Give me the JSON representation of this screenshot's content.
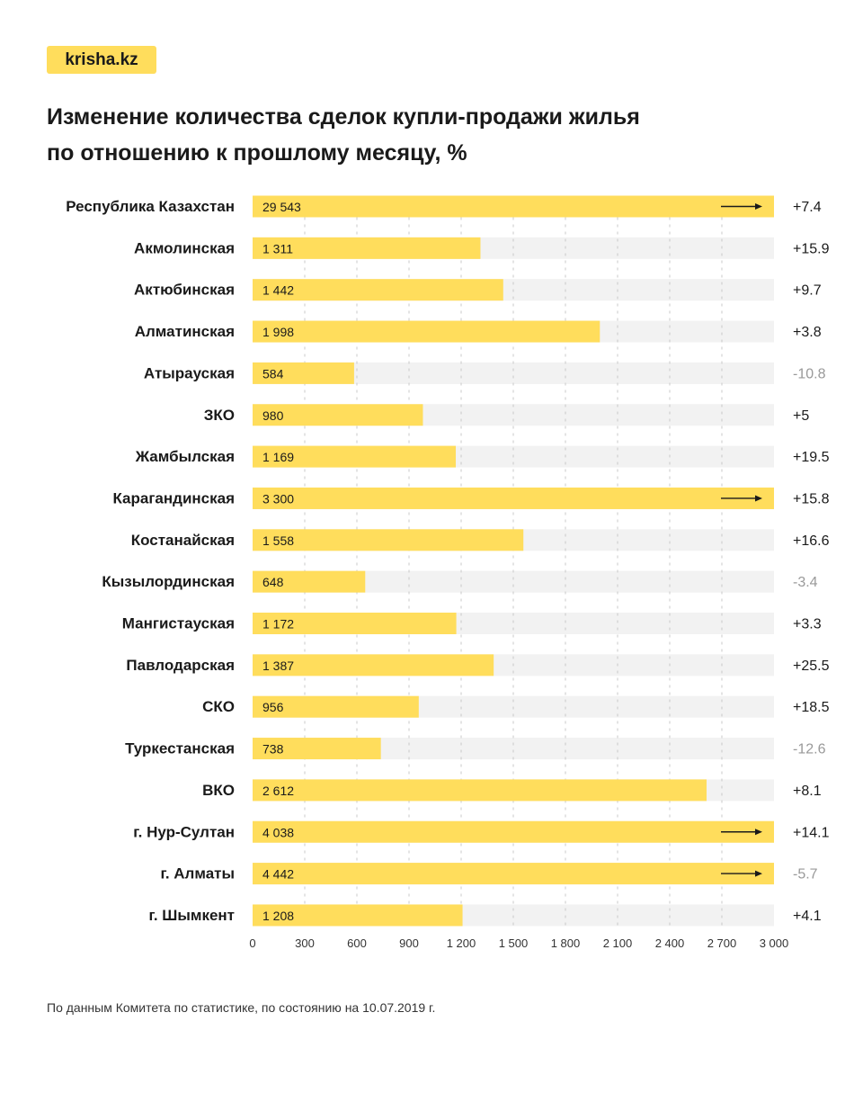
{
  "logo": {
    "text": "krisha.kz"
  },
  "footnote": "По данным Комитета по статистике, по состоянию на 10.07.2019 г.",
  "chart_data": {
    "type": "bar",
    "orientation": "horizontal",
    "title_lines": [
      "Изменение количества сделок купли-продажи жилья",
      "по отношению к прошлому месяцу, %"
    ],
    "xlim": [
      0,
      3000
    ],
    "x_ticks": [
      0,
      300,
      600,
      900,
      1200,
      1500,
      1800,
      2100,
      2400,
      2700,
      3000
    ],
    "x_tick_labels": [
      "0",
      "300",
      "600",
      "900",
      "1 200",
      "1 500",
      "1 800",
      "2 100",
      "2 400",
      "2 700",
      "3 000"
    ],
    "grid": "vertical-dashed",
    "categories": [
      "Республика Казахстан",
      "Акмолинская",
      "Актюбинская",
      "Алматинская",
      "Атырауская",
      "ЗКО",
      "Жамбылская",
      "Карагандинская",
      "Костанайская",
      "Кызылординская",
      "Мангистауская",
      "Павлодарская",
      "СКО",
      "Туркестанская",
      "ВКО",
      "г. Нур-Султан",
      "г. Алматы",
      "г. Шымкент"
    ],
    "values": [
      29543,
      1311,
      1442,
      1998,
      584,
      980,
      1169,
      3300,
      1558,
      648,
      1172,
      1387,
      956,
      738,
      2612,
      4038,
      4442,
      1208
    ],
    "value_labels": [
      "29 543",
      "1 311",
      "1 442",
      "1 998",
      "584",
      "980",
      "1 169",
      "3 300",
      "1 558",
      "648",
      "1 172",
      "1 387",
      "956",
      "738",
      "2 612",
      "4 038",
      "4 442",
      "1 208"
    ],
    "overflow_arrow": [
      true,
      false,
      false,
      false,
      false,
      false,
      false,
      true,
      false,
      false,
      false,
      false,
      false,
      false,
      false,
      true,
      true,
      false
    ],
    "change_labels": [
      "+7.4",
      "+15.9",
      "+9.7",
      "+3.8",
      "-10.8",
      "+5",
      "+19.5",
      "+15.8",
      "+16.6",
      "-3.4",
      "+3.3",
      "+25.5",
      "+18.5",
      "-12.6",
      "+8.1",
      "+14.1",
      "-5.7",
      "+4.1"
    ],
    "change_values": [
      7.4,
      15.9,
      9.7,
      3.8,
      -10.8,
      5,
      19.5,
      15.8,
      16.6,
      -3.4,
      3.3,
      25.5,
      18.5,
      -12.6,
      8.1,
      14.1,
      -5.7,
      4.1
    ],
    "colors": {
      "bar": "#ffdd5c",
      "track": "#f2f2f2",
      "grid": "#c8c8c8",
      "positive_text": "#1a1a1a",
      "negative_text": "#999999",
      "arrow": "#1a1a1a"
    }
  }
}
